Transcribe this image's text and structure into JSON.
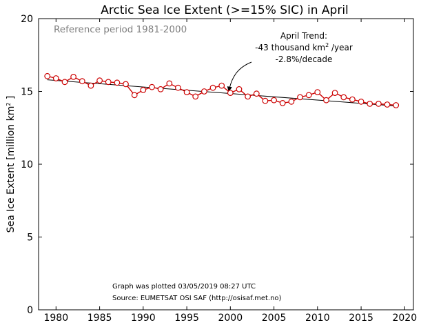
{
  "chart_data": {
    "type": "line",
    "title": "Arctic Sea Ice Extent (>=15% SIC) in April",
    "reference_note": "Reference period 1981-2000",
    "ylabel_main": "Sea Ice Extent [million km",
    "ylabel_sup": "2",
    "ylabel_end": " ]",
    "xlabel": "",
    "xlim": [
      1978,
      2021
    ],
    "ylim": [
      0,
      20
    ],
    "xticks": [
      1980,
      1985,
      1990,
      1995,
      2000,
      2005,
      2010,
      2015,
      2020
    ],
    "yticks": [
      0,
      5,
      10,
      15,
      20
    ],
    "trend_text": {
      "line1": "April Trend:",
      "line2_pre": "-43 thousand km",
      "line2_sup": "2",
      "line2_post": " /year",
      "line3": "-2.8%/decade"
    },
    "arrow_tip": [
      1999.8,
      14.95
    ],
    "footer": {
      "line1": "Graph was plotted 03/05/2019 08:27 UTC",
      "line2": "Source: EUMETSAT OSI SAF (http://osisaf.met.no)"
    },
    "series": [
      {
        "x": [
          1979,
          1980,
          1981,
          1982,
          1983,
          1984,
          1985,
          1986,
          1987,
          1988,
          1989,
          1990,
          1991,
          1992,
          1993,
          1994,
          1995,
          1996,
          1997,
          1998,
          1999,
          2000,
          2001,
          2002,
          2003,
          2004,
          2005,
          2006,
          2007,
          2008,
          2009,
          2010,
          2011,
          2012,
          2013,
          2014,
          2015,
          2016,
          2017,
          2018,
          2019
        ],
        "y": [
          16.05,
          15.9,
          15.65,
          16.0,
          15.7,
          15.4,
          15.75,
          15.65,
          15.6,
          15.5,
          14.75,
          15.1,
          15.3,
          15.15,
          15.55,
          15.25,
          14.95,
          14.65,
          15.0,
          15.25,
          15.4,
          14.9,
          15.15,
          14.65,
          14.85,
          14.35,
          14.4,
          14.2,
          14.3,
          14.6,
          14.75,
          14.95,
          14.4,
          14.9,
          14.6,
          14.45,
          14.3,
          14.15,
          14.15,
          14.1,
          14.05
        ],
        "color": "#cc0000",
        "marker": "circle"
      }
    ],
    "trend": {
      "x": [
        1979,
        2019
      ],
      "y": [
        15.8,
        14.0
      ],
      "color": "#000000"
    }
  }
}
